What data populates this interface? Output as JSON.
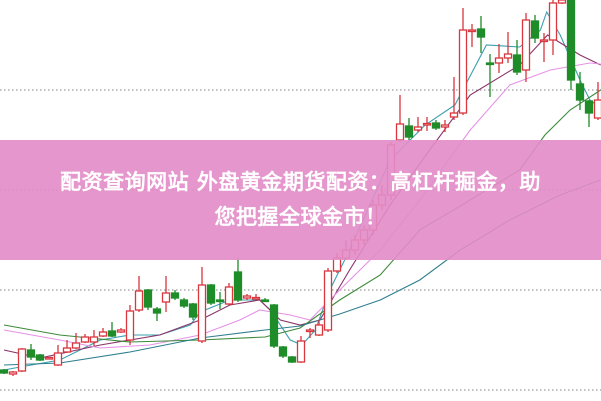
{
  "banner": {
    "line1": "配资查询网站 外盘黄金期货配资：高杠杆掘金，助",
    "line2": "您把握全球金市！"
  },
  "chart_data": {
    "type": "candlestick",
    "title": "",
    "grid": true,
    "colors": {
      "up": "#d9363e",
      "down": "#1e8c28",
      "grid": "#9a9a9a",
      "banner": "#e28cc8"
    },
    "candles": [
      [
        30,
        31,
        26,
        27
      ],
      [
        26,
        29,
        24,
        28
      ],
      [
        29,
        52,
        28,
        51
      ],
      [
        50,
        56,
        40,
        43
      ],
      [
        45,
        46,
        39,
        40
      ],
      [
        42,
        43,
        41,
        42.5
      ],
      [
        35,
        55,
        34,
        47
      ],
      [
        48,
        60,
        47,
        52
      ],
      [
        52,
        67,
        51,
        57
      ],
      [
        58,
        66,
        57,
        63
      ],
      [
        58,
        70,
        54,
        63
      ],
      [
        64,
        72,
        63,
        68
      ],
      [
        69,
        78,
        63,
        64
      ],
      [
        68,
        72,
        67,
        70
      ],
      [
        60,
        95,
        55,
        89
      ],
      [
        90,
        124,
        88,
        109
      ],
      [
        110,
        111,
        90,
        93
      ],
      [
        91,
        93,
        79,
        87
      ],
      [
        98,
        124,
        88,
        107
      ],
      [
        107,
        110,
        100,
        102
      ],
      [
        100,
        102,
        92,
        94
      ],
      [
        96,
        97,
        80,
        83
      ],
      [
        59,
        133,
        57,
        115
      ],
      [
        115,
        116,
        95,
        97
      ],
      [
        100,
        108,
        91,
        99
      ],
      [
        96,
        117,
        95,
        113
      ],
      [
        128,
        142,
        98,
        100
      ],
      [
        102,
        106,
        100,
        104
      ],
      [
        102,
        106,
        100,
        102.5
      ],
      [
        100,
        102,
        98,
        99.5
      ],
      [
        95,
        96,
        52,
        54
      ],
      [
        53,
        54,
        42,
        44
      ],
      [
        43,
        44,
        37,
        38
      ],
      [
        38,
        64,
        37,
        59
      ],
      [
        70,
        72,
        62,
        70
      ],
      [
        65,
        80,
        64,
        75
      ],
      [
        70,
        132,
        68,
        129
      ],
      [
        129,
        147,
        127,
        142
      ],
      [
        142,
        160,
        140,
        150
      ],
      [
        150,
        165,
        145,
        160
      ],
      [
        160,
        175,
        155,
        170
      ],
      [
        170,
        200,
        165,
        195
      ],
      [
        195,
        215,
        190,
        205
      ],
      [
        205,
        258,
        200,
        255
      ],
      [
        260,
        305,
        258,
        276
      ],
      [
        274,
        282,
        260,
        263
      ],
      [
        270,
        283,
        268,
        273
      ],
      [
        276,
        283,
        269,
        276.5
      ],
      [
        277,
        280,
        270,
        272
      ],
      [
        273,
        280,
        268,
        275
      ],
      [
        283,
        323,
        280,
        287
      ],
      [
        287,
        392,
        285,
        370
      ],
      [
        370,
        376,
        353,
        370
      ],
      [
        371,
        384,
        347,
        363
      ],
      [
        337,
        346,
        303,
        336
      ],
      [
        337,
        356,
        327,
        342
      ],
      [
        342,
        368,
        337,
        346
      ],
      [
        345,
        360,
        325,
        328
      ],
      [
        330,
        387,
        318,
        380
      ],
      [
        379,
        385,
        357,
        362
      ],
      [
        360,
        367,
        338,
        360
      ],
      [
        360,
        400,
        345,
        397
      ],
      [
        397,
        401,
        396,
        400
      ],
      [
        400,
        401,
        310,
        320
      ],
      [
        316,
        328,
        290,
        300
      ],
      [
        299,
        300,
        273,
        287
      ],
      [
        282,
        318,
        280,
        300
      ],
      [
        284,
        314,
        280,
        311
      ],
      [
        309,
        313,
        292,
        296
      ]
    ],
    "moving_averages": [
      {
        "color": "#3a9fb0",
        "points": [
          [
            0,
            30
          ],
          [
            1.8,
            33
          ],
          [
            6.2,
            40
          ],
          [
            10.7,
            60
          ],
          [
            14,
            65
          ],
          [
            17.3,
            65
          ],
          [
            20.7,
            75
          ],
          [
            21.8,
            88
          ],
          [
            25.1,
            100
          ],
          [
            28.4,
            100
          ],
          [
            29.6,
            90
          ],
          [
            31.8,
            60
          ],
          [
            33.1,
            55
          ],
          [
            34.6,
            70
          ],
          [
            36.2,
            110
          ],
          [
            38.4,
            150
          ],
          [
            42.9,
            240
          ],
          [
            46.8,
            275
          ],
          [
            50.1,
            295
          ],
          [
            53.6,
            355
          ],
          [
            57.3,
            353
          ],
          [
            59.6,
            370
          ],
          [
            60.3,
            388
          ],
          [
            61.8,
            365
          ],
          [
            64,
            320
          ],
          [
            65.1,
            300
          ],
          [
            66.3,
            292
          ]
        ]
      },
      {
        "color": "#8a3468",
        "points": [
          [
            0,
            50
          ],
          [
            4,
            42
          ],
          [
            10.7,
            55
          ],
          [
            17.3,
            65
          ],
          [
            21.8,
            80
          ],
          [
            25.1,
            95
          ],
          [
            28.4,
            100
          ],
          [
            30.7,
            80
          ],
          [
            32.9,
            75
          ],
          [
            35.1,
            80
          ],
          [
            38.4,
            130
          ],
          [
            42.9,
            195
          ],
          [
            47.3,
            250
          ],
          [
            51.8,
            305
          ],
          [
            57.3,
            335
          ],
          [
            60.4,
            365
          ],
          [
            64,
            345
          ],
          [
            66.3,
            335
          ]
        ]
      },
      {
        "color": "#e692e6",
        "points": [
          [
            0,
            70
          ],
          [
            6.2,
            60
          ],
          [
            10.7,
            52
          ],
          [
            16.2,
            55
          ],
          [
            21.8,
            65
          ],
          [
            26.2,
            80
          ],
          [
            28.4,
            90
          ],
          [
            31.8,
            85
          ],
          [
            34,
            80
          ],
          [
            37.3,
            110
          ],
          [
            41.8,
            150
          ],
          [
            46.2,
            200
          ],
          [
            51.8,
            270
          ],
          [
            56.2,
            315
          ],
          [
            60.7,
            330
          ],
          [
            65.1,
            337
          ],
          [
            66.3,
            336
          ]
        ]
      },
      {
        "color": "#3d8a3a",
        "points": [
          [
            0,
            75
          ],
          [
            6.2,
            65
          ],
          [
            14,
            58
          ],
          [
            21.8,
            60
          ],
          [
            29,
            63
          ],
          [
            32.9,
            72
          ],
          [
            37.3,
            100
          ],
          [
            41.8,
            125
          ],
          [
            46.2,
            170
          ],
          [
            51.8,
            200
          ],
          [
            57.3,
            230
          ],
          [
            60.1,
            265
          ],
          [
            62.9,
            290
          ],
          [
            66.3,
            310
          ]
        ]
      },
      {
        "color": "#2f7f8e",
        "points": [
          [
            0,
            35
          ],
          [
            6.2,
            37
          ],
          [
            14,
            48
          ],
          [
            21.8,
            62
          ],
          [
            29,
            70
          ],
          [
            32.9,
            74
          ],
          [
            37.3,
            86
          ],
          [
            41.8,
            100
          ],
          [
            46.2,
            120
          ],
          [
            50.7,
            150
          ],
          [
            56.2,
            180
          ],
          [
            61.8,
            205
          ],
          [
            66.3,
            220
          ]
        ]
      }
    ]
  }
}
